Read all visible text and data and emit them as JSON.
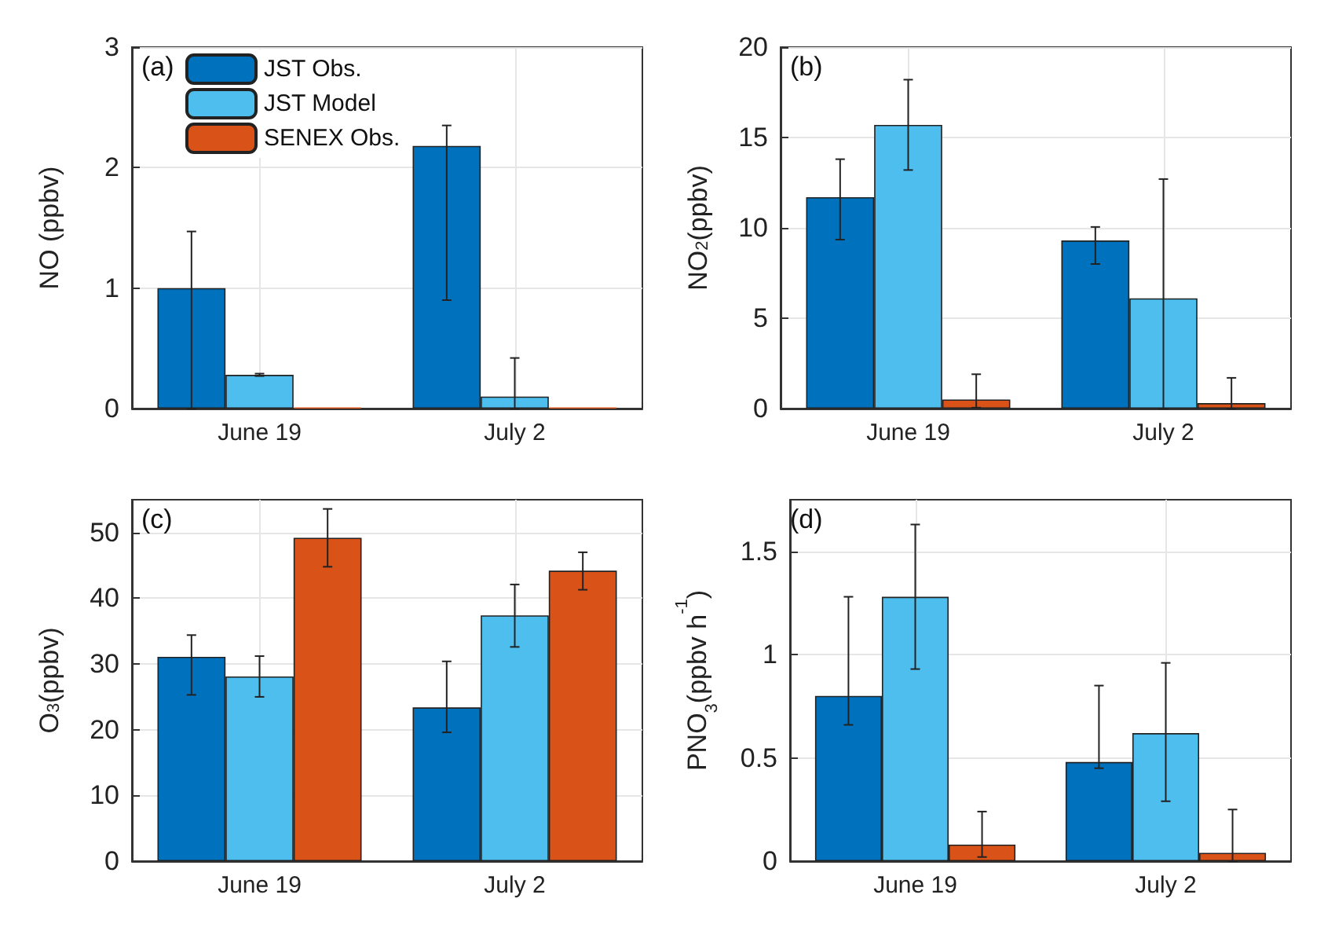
{
  "chart_data": [
    {
      "type": "bar",
      "ylabel": "NO (ppbv)",
      "annotations": [
        "(a)"
      ],
      "categories": [
        "June 19",
        "July 2"
      ],
      "ylim": [
        0,
        3
      ],
      "yticks": [
        0,
        1,
        2,
        3
      ],
      "grid": true,
      "legend": "top left",
      "series": [
        {
          "name": "JST Obs.",
          "color": "#0072bd",
          "values": [
            1.0,
            2.18
          ],
          "errors": [
            [
              0,
              1.47
            ],
            [
              0.9,
              2.35
            ]
          ]
        },
        {
          "name": "JST Model",
          "color": "#4dbeee",
          "values": [
            0.28,
            0.1
          ],
          "errors": [
            [
              0.27,
              0.29
            ],
            [
              0,
              0.42
            ]
          ]
        },
        {
          "name": "SENEX Obs.",
          "color": "#d95319",
          "values": [
            0.01,
            0.01
          ]
        }
      ]
    },
    {
      "type": "bar",
      "ylabel": "NO$_{2}$(ppbv)",
      "annotations": [
        "(b)"
      ],
      "categories": [
        "June 19",
        "July 2"
      ],
      "ylim": [
        0,
        20
      ],
      "yticks": [
        0,
        5,
        10,
        15,
        20
      ],
      "grid": true,
      "series": [
        {
          "color": "#0072bd",
          "values": [
            11.7,
            9.3
          ],
          "errors": [
            [
              9.35,
              13.8
            ],
            [
              8.0,
              10.05
            ]
          ]
        },
        {
          "color": "#4dbeee",
          "values": [
            15.7,
            6.1
          ],
          "errors": [
            [
              13.2,
              18.2
            ],
            [
              0,
              12.7
            ]
          ]
        },
        {
          "color": "#d95319",
          "values": [
            0.5,
            0.3
          ],
          "errors": [
            [
              0.05,
              1.9
            ],
            [
              0,
              1.7
            ]
          ]
        }
      ]
    },
    {
      "type": "bar",
      "ylabel": "O$_{3}$(ppbv)",
      "annotations": [
        "(c)"
      ],
      "categories": [
        "June 19",
        "July 2"
      ],
      "ylim": [
        0,
        55
      ],
      "yticks": [
        0,
        10,
        20,
        30,
        40,
        50
      ],
      "grid": true,
      "series": [
        {
          "color": "#0072bd",
          "values": [
            31.1,
            23.4
          ],
          "errors": [
            [
              25.3,
              34.4
            ],
            [
              19.6,
              30.4
            ]
          ]
        },
        {
          "color": "#4dbeee",
          "values": [
            28.1,
            37.4
          ],
          "errors": [
            [
              25.0,
              31.2
            ],
            [
              32.6,
              42.1
            ]
          ]
        },
        {
          "color": "#d95319",
          "values": [
            49.2,
            44.2
          ],
          "errors": [
            [
              44.8,
              53.6
            ],
            [
              41.3,
              47.0
            ]
          ]
        }
      ]
    },
    {
      "type": "bar",
      "ylabel": "PNO$_{3}$(ppbv h$^{-1}$)",
      "annotations": [
        "(d)"
      ],
      "categories": [
        "June 19",
        "July 2"
      ],
      "ylim": [
        0,
        1.75
      ],
      "yticks": [
        0,
        0.5,
        1,
        1.5
      ],
      "grid": true,
      "series": [
        {
          "color": "#0072bd",
          "values": [
            0.8,
            0.48
          ],
          "errors": [
            [
              0.66,
              1.28
            ],
            [
              0.45,
              0.85
            ]
          ]
        },
        {
          "color": "#4dbeee",
          "values": [
            1.28,
            0.62
          ],
          "errors": [
            [
              0.93,
              1.63
            ],
            [
              0.29,
              0.96
            ]
          ]
        },
        {
          "color": "#d95319",
          "values": [
            0.08,
            0.04
          ],
          "errors": [
            [
              0.02,
              0.24
            ],
            [
              0,
              0.25
            ]
          ]
        }
      ]
    }
  ]
}
